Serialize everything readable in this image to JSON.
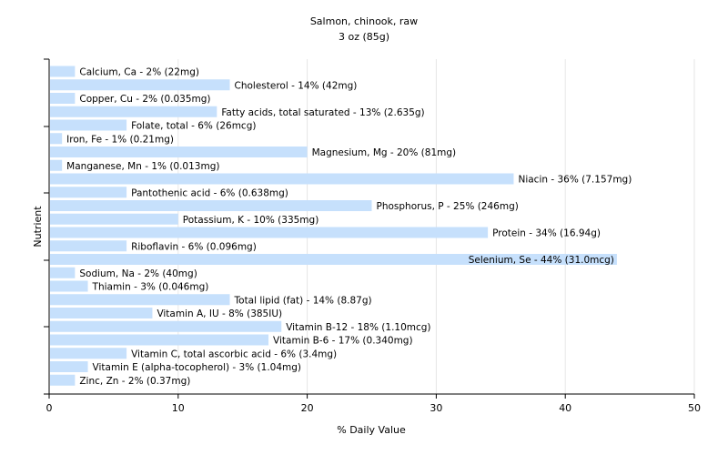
{
  "chart_data": {
    "type": "bar",
    "orientation": "horizontal",
    "title": "Salmon, chinook, raw",
    "subtitle": "3 oz (85g)",
    "xlabel": "% Daily Value",
    "ylabel": "Nutrient",
    "xlim": [
      0,
      50
    ],
    "xticks": [
      "0",
      "10",
      "20",
      "30",
      "40",
      "50"
    ],
    "grid": true,
    "bar_color": "#c6e0fc",
    "categories": [
      "Calcium, Ca",
      "Cholesterol",
      "Copper, Cu",
      "Fatty acids, total saturated",
      "Folate, total",
      "Iron, Fe",
      "Magnesium, Mg",
      "Manganese, Mn",
      "Niacin",
      "Pantothenic acid",
      "Phosphorus, P",
      "Potassium, K",
      "Protein",
      "Riboflavin",
      "Selenium, Se",
      "Sodium, Na",
      "Thiamin",
      "Total lipid (fat)",
      "Vitamin A, IU",
      "Vitamin B-12",
      "Vitamin B-6",
      "Vitamin C, total ascorbic acid",
      "Vitamin E (alpha-tocopherol)",
      "Zinc, Zn"
    ],
    "values": [
      2,
      14,
      2,
      13,
      6,
      1,
      20,
      1,
      36,
      6,
      25,
      10,
      34,
      6,
      44,
      2,
      3,
      14,
      8,
      18,
      17,
      6,
      3,
      2
    ],
    "labels": [
      "Calcium, Ca - 2% (22mg)",
      "Cholesterol - 14% (42mg)",
      "Copper, Cu - 2% (0.035mg)",
      "Fatty acids, total saturated - 13% (2.635g)",
      "Folate, total - 6% (26mcg)",
      "Iron, Fe - 1% (0.21mg)",
      "Magnesium, Mg - 20% (81mg)",
      "Manganese, Mn - 1% (0.013mg)",
      "Niacin - 36% (7.157mg)",
      "Pantothenic acid - 6% (0.638mg)",
      "Phosphorus, P - 25% (246mg)",
      "Potassium, K - 10% (335mg)",
      "Protein - 34% (16.94g)",
      "Riboflavin - 6% (0.096mg)",
      "Selenium, Se - 44% (31.0mcg)",
      "Sodium, Na - 2% (40mg)",
      "Thiamin - 3% (0.046mg)",
      "Total lipid (fat) - 14% (8.87g)",
      "Vitamin A, IU - 8% (385IU)",
      "Vitamin B-12 - 18% (1.10mcg)",
      "Vitamin B-6 - 17% (0.340mg)",
      "Vitamin C, total ascorbic acid - 6% (3.4mg)",
      "Vitamin E (alpha-tocopherol) - 3% (1.04mg)",
      "Zinc, Zn - 2% (0.37mg)"
    ]
  }
}
